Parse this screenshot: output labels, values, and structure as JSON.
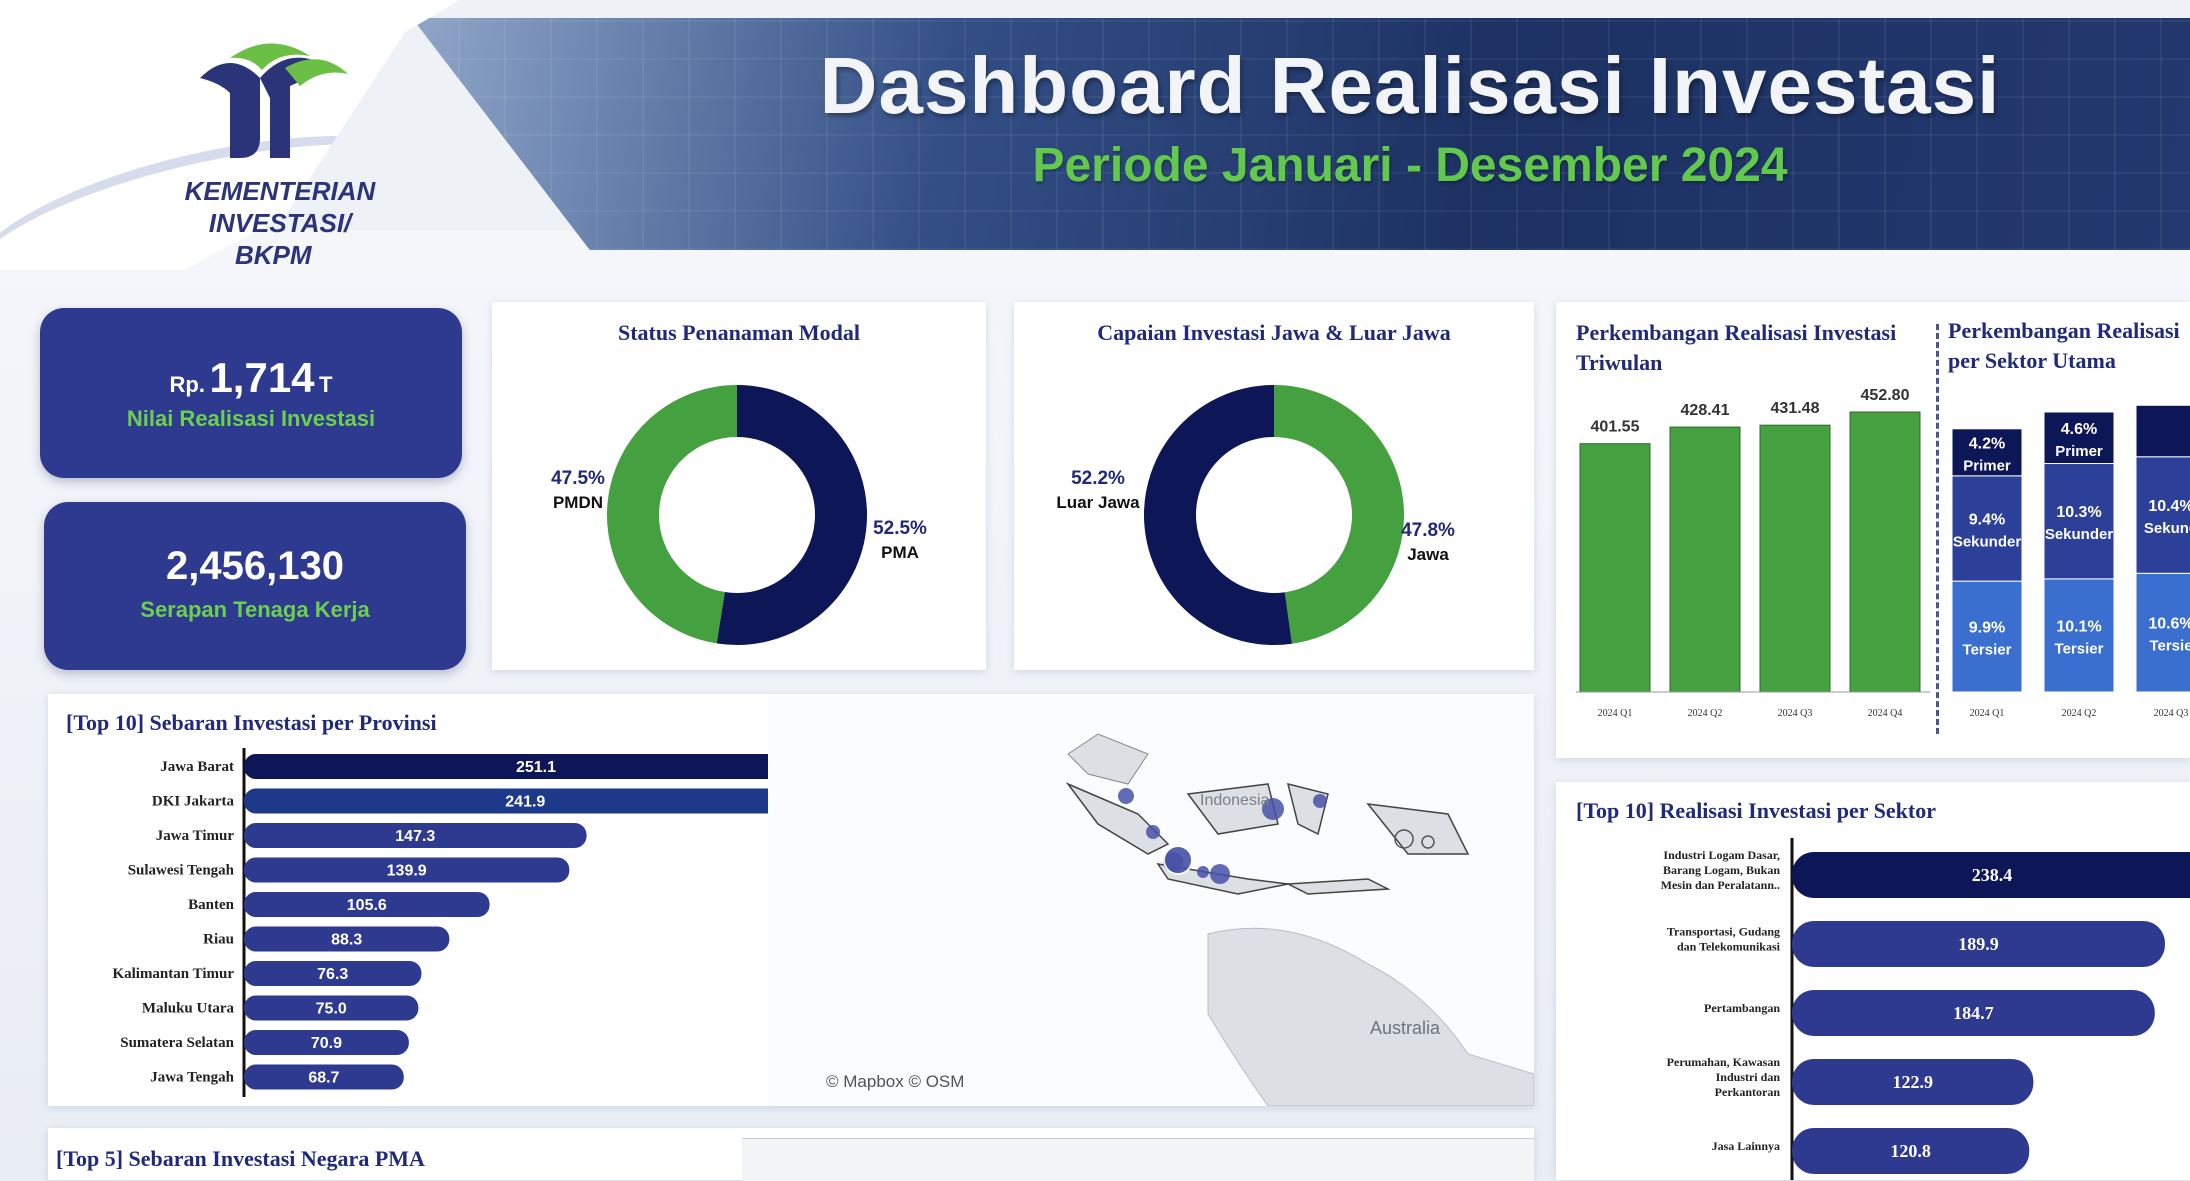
{
  "header": {
    "logo_line1": "KEMENTERIAN INVESTASI/",
    "logo_line2": "BKPM",
    "title": "Dashboard Realisasi Investasi",
    "subtitle": "Periode Januari - Desember 2024"
  },
  "kpis": {
    "investment": {
      "prefix": "Rp.",
      "value": "1,714",
      "suffix": "T",
      "label": "Nilai Realisasi Investasi"
    },
    "workforce": {
      "value": "2,456,130",
      "label": "Serapan Tenaga Kerja"
    }
  },
  "status_panel": {
    "title": "Status Penanaman Modal",
    "slices": [
      {
        "label": "PMA",
        "pct": "52.5%",
        "value": 52.5,
        "color": "#0d1656"
      },
      {
        "label": "PMDN",
        "pct": "47.5%",
        "value": 47.5,
        "color": "#45a03f"
      }
    ]
  },
  "java_panel": {
    "title": "Capaian Investasi Jawa & Luar Jawa",
    "slices": [
      {
        "label": "Jawa",
        "pct": "47.8%",
        "value": 47.8,
        "color": "#45a03f"
      },
      {
        "label": "Luar Jawa",
        "pct": "52.2%",
        "value": 52.2,
        "color": "#0d1656"
      }
    ]
  },
  "quarterly_panel": {
    "title_line1": "Perkembangan Realisasi Investasi",
    "title_line2": "Triwulan",
    "chart_data": {
      "type": "bar",
      "categories": [
        "2024 Q1",
        "2024 Q2",
        "2024 Q3",
        "2024 Q4"
      ],
      "values": [
        401.55,
        428.41,
        431.48,
        452.8
      ],
      "labels": [
        "401.55",
        "428.41",
        "431.48",
        "452.80"
      ],
      "color": "#45a03f"
    }
  },
  "sector_main_panel": {
    "title_line1": "Perkembangan Realisasi",
    "title_line2": "per Sektor Utama",
    "chart_data": {
      "type": "bar",
      "stacked": true,
      "categories": [
        "2024 Q1",
        "2024 Q2",
        "2024 Q3"
      ],
      "series": [
        {
          "name": "Primer",
          "values": [
            4.2,
            4.6,
            4.6
          ],
          "labels": [
            "4.2%",
            "4.6%",
            ""
          ],
          "color": "#0d1656"
        },
        {
          "name": "Sekunder",
          "values": [
            9.4,
            10.3,
            10.4
          ],
          "labels": [
            "9.4%",
            "10.3%",
            "10.4%"
          ],
          "color": "#2c3f99"
        },
        {
          "name": "Tersier",
          "values": [
            9.9,
            10.1,
            10.6
          ],
          "labels": [
            "9.9%",
            "10.1%",
            "10.6%"
          ],
          "color": "#3a6fd0"
        }
      ],
      "name_labels": [
        [
          "Primer",
          "Sekunder",
          "Tersier"
        ],
        [
          "Primer",
          "Sekunder",
          "Tersier"
        ],
        [
          "",
          "Sekund",
          "Tersie"
        ]
      ],
      "value_clipped_labels": [
        "10.4",
        "10.6"
      ]
    }
  },
  "province_panel": {
    "title": "[Top 10] Sebaran Investasi per Provinsi",
    "chart_data": {
      "type": "bar",
      "orientation": "horizontal",
      "categories": [
        "Jawa Barat",
        "DKI Jakarta",
        "Jawa Timur",
        "Sulawesi Tengah",
        "Banten",
        "Riau",
        "Kalimantan Timur",
        "Maluku Utara",
        "Sumatera Selatan",
        "Jawa Tengah"
      ],
      "values": [
        251.1,
        241.9,
        147.3,
        139.9,
        105.6,
        88.3,
        76.3,
        75.0,
        70.9,
        68.7
      ],
      "labels": [
        "251.1",
        "241.9",
        "147.3",
        "139.9",
        "105.6",
        "88.3",
        "76.3",
        "75.0",
        "70.9",
        "68.7"
      ],
      "colors": [
        "#0d1656",
        "#1d3a8a",
        "#2e3a8f",
        "#2e3a8f",
        "#2e3a8f",
        "#2e3a8f",
        "#2e3a8f",
        "#2e3a8f",
        "#2e3a8f",
        "#2e3a8f"
      ]
    },
    "map": {
      "label_country": "Indonesia",
      "label_australia": "Australia",
      "attribution": "© Mapbox  © OSM"
    }
  },
  "sector_top_panel": {
    "title": "[Top 10] Realisasi Investasi per Sektor",
    "chart_data": {
      "type": "bar",
      "orientation": "horizontal",
      "categories": [
        "Industri Logam Dasar, Barang Logam, Bukan Mesin dan Peralatann..",
        "Transportasi, Gudang dan Telekomunikasi",
        "Pertambangan",
        "Perumahan, Kawasan Industri dan Perkantoran",
        "Jasa Lainnya"
      ],
      "category_lines": [
        [
          "Industri Logam Dasar,",
          "Barang Logam, Bukan",
          "Mesin dan Peralatann.."
        ],
        [
          "Transportasi, Gudang",
          "dan Telekomunikasi"
        ],
        [
          "Pertambangan"
        ],
        [
          "Perumahan, Kawasan",
          "Industri dan",
          "Perkantoran"
        ],
        [
          "Jasa Lainnya"
        ]
      ],
      "values": [
        238.4,
        189.9,
        184.7,
        122.9,
        120.8
      ],
      "labels": [
        "238.4",
        "189.9",
        "184.7",
        "122.9",
        "120.8"
      ],
      "colors": [
        "#0d1656",
        "#2e3a8f",
        "#2e3a8f",
        "#2e3a8f",
        "#2e3a8f"
      ]
    }
  },
  "country_panel": {
    "title": "[Top 5] Sebaran Investasi Negara PMA"
  }
}
